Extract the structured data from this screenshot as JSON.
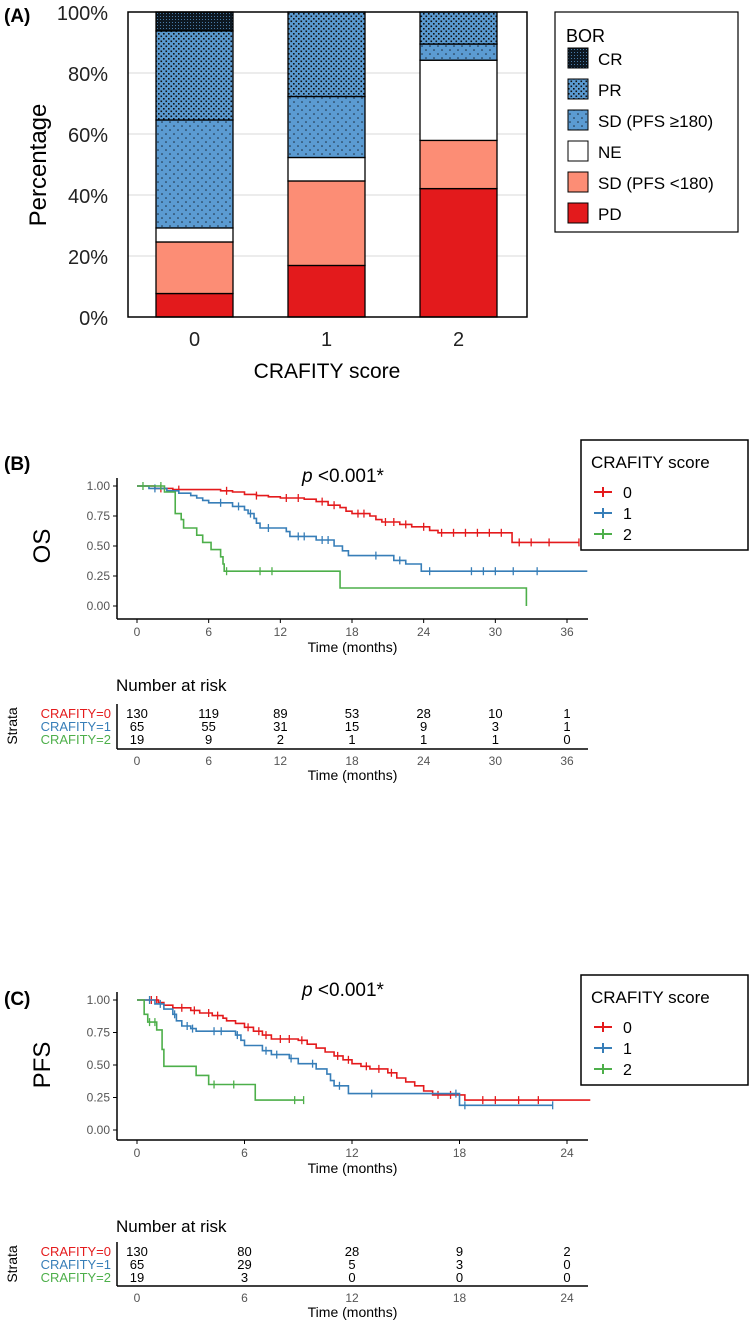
{
  "colors": {
    "pd": "#e31a1c",
    "sd_lt": "#fc8d75",
    "ne": "#ffffff",
    "sd_ge": "#5b9bd2",
    "pr": "#4a86c2",
    "cr": "#1a2a3a",
    "g0": "#e41a1c",
    "g1": "#377eb8",
    "g2": "#4daf4a"
  },
  "panel_labels": {
    "a": "(A)",
    "b": "(B)",
    "c": "(C)"
  },
  "chart_data": [
    {
      "type": "bar",
      "stacked": true,
      "title": "",
      "xlabel": "CRAFITY score",
      "ylabel": "Percentage",
      "categories": [
        "0",
        "1",
        "2"
      ],
      "ylim": [
        0,
        100
      ],
      "yticks": [
        "0%",
        "20%",
        "40%",
        "60%",
        "80%",
        "100%"
      ],
      "legend_title": "BOR",
      "legend_position": "right",
      "series": [
        {
          "key": "pd",
          "name": "PD",
          "values": [
            7.7,
            16.9,
            42.1
          ]
        },
        {
          "key": "sd_lt",
          "name": "SD (PFS <180)",
          "values": [
            16.9,
            27.7,
            15.8
          ]
        },
        {
          "key": "ne",
          "name": "NE",
          "values": [
            4.6,
            7.7,
            26.3
          ]
        },
        {
          "key": "sd_ge",
          "name": "SD (PFS ≥180)",
          "values": [
            35.4,
            20.0,
            5.3
          ]
        },
        {
          "key": "pr",
          "name": "PR",
          "values": [
            29.2,
            27.7,
            10.5
          ]
        },
        {
          "key": "cr",
          "name": "CR",
          "values": [
            6.2,
            0,
            0
          ]
        }
      ],
      "legend_order": [
        "CR",
        "PR",
        "SD (PFS ≥180)",
        "NE",
        "SD (PFS <180)",
        "PD"
      ]
    },
    {
      "type": "line",
      "subtype": "kaplan-meier",
      "ylabel": "OS",
      "xlabel": "Time (months)",
      "annotation": {
        "p": "p",
        "rest": " <0.001*"
      },
      "xlim": [
        0,
        38
      ],
      "xticks": [
        0,
        6,
        12,
        18,
        24,
        30,
        36
      ],
      "ylim": [
        0,
        1
      ],
      "yticks": [
        "0.00",
        "0.25",
        "0.50",
        "0.75",
        "1.00"
      ],
      "legend_title": "CRAFITY score",
      "legend_position": "top-right",
      "series": [
        {
          "name": "0",
          "color_key": "g0",
          "steps": [
            [
              0,
              1
            ],
            [
              1.5,
              0.98
            ],
            [
              3,
              0.97
            ],
            [
              7,
              0.96
            ],
            [
              8,
              0.95
            ],
            [
              9,
              0.93
            ],
            [
              10,
              0.92
            ],
            [
              11,
              0.91
            ],
            [
              12,
              0.9
            ],
            [
              14,
              0.89
            ],
            [
              15,
              0.87
            ],
            [
              16,
              0.84
            ],
            [
              17,
              0.82
            ],
            [
              17.5,
              0.79
            ],
            [
              18,
              0.77
            ],
            [
              19.5,
              0.75
            ],
            [
              20,
              0.72
            ],
            [
              20.5,
              0.7
            ],
            [
              22,
              0.68
            ],
            [
              23,
              0.66
            ],
            [
              24.5,
              0.63
            ],
            [
              25.2,
              0.61
            ],
            [
              31.4,
              0.53
            ]
          ],
          "end": 37,
          "censor": [
            2,
            3.5,
            7.5,
            10,
            12.5,
            13.5,
            15.5,
            16.5,
            18.5,
            19,
            20.8,
            21.5,
            22.5,
            24,
            25.5,
            26.5,
            27.5,
            28.5,
            29.5,
            30.5,
            32,
            33,
            34.5,
            37
          ]
        },
        {
          "name": "1",
          "color_key": "g1",
          "steps": [
            [
              0,
              1
            ],
            [
              1,
              0.98
            ],
            [
              2.5,
              0.96
            ],
            [
              3.5,
              0.94
            ],
            [
              4.5,
              0.92
            ],
            [
              5,
              0.9
            ],
            [
              5.5,
              0.88
            ],
            [
              6,
              0.86
            ],
            [
              8,
              0.83
            ],
            [
              9,
              0.8
            ],
            [
              9.3,
              0.77
            ],
            [
              9.8,
              0.73
            ],
            [
              10,
              0.69
            ],
            [
              10.3,
              0.65
            ],
            [
              12.5,
              0.62
            ],
            [
              12.8,
              0.58
            ],
            [
              15,
              0.55
            ],
            [
              16.5,
              0.5
            ],
            [
              17.2,
              0.46
            ],
            [
              17.7,
              0.42
            ],
            [
              21.5,
              0.38
            ],
            [
              22.5,
              0.35
            ],
            [
              23.8,
              0.29
            ]
          ],
          "end": 37.7,
          "censor": [
            1.5,
            7,
            8.5,
            9.5,
            11,
            13.5,
            14,
            15.5,
            16,
            20,
            22,
            24.5,
            28,
            29,
            30,
            31.5,
            33.5
          ]
        },
        {
          "name": "2",
          "color_key": "g2",
          "steps": [
            [
              0,
              1
            ],
            [
              2.3,
              0.95
            ],
            [
              3.2,
              0.77
            ],
            [
              3.7,
              0.72
            ],
            [
              3.9,
              0.65
            ],
            [
              5,
              0.59
            ],
            [
              5.5,
              0.53
            ],
            [
              6.2,
              0.47
            ],
            [
              7,
              0.41
            ],
            [
              7.2,
              0.35
            ],
            [
              7.3,
              0.29
            ],
            [
              17,
              0.15
            ],
            [
              32.6,
              0
            ]
          ],
          "end": 32.6,
          "censor": [
            0.5,
            2,
            7.5,
            10.3,
            11.3
          ]
        }
      ],
      "risk_table": {
        "title": "Number at risk",
        "strata_label": "Strata",
        "rows": [
          {
            "label": "CRAFITY=0",
            "color_key": "g0",
            "values": [
              "130",
              "119",
              "89",
              "53",
              "28",
              "10",
              "1"
            ]
          },
          {
            "label": "CRAFITY=1",
            "color_key": "g1",
            "values": [
              "65",
              "55",
              "31",
              "15",
              "9",
              "3",
              "1"
            ]
          },
          {
            "label": "CRAFITY=2",
            "color_key": "g2",
            "values": [
              "19",
              "9",
              "2",
              "1",
              "1",
              "1",
              "0"
            ]
          }
        ]
      }
    },
    {
      "type": "line",
      "subtype": "kaplan-meier",
      "ylabel": "PFS",
      "xlabel": "Time (months)",
      "annotation": {
        "p": "p",
        "rest": " <0.001*"
      },
      "xlim": [
        0,
        25.3
      ],
      "xticks": [
        0,
        6,
        12,
        18,
        24
      ],
      "ylim": [
        0,
        1
      ],
      "yticks": [
        "0.00",
        "0.25",
        "0.50",
        "0.75",
        "1.00"
      ],
      "legend_title": "CRAFITY score",
      "legend_position": "top-right",
      "series": [
        {
          "name": "0",
          "color_key": "g0",
          "steps": [
            [
              0,
              1
            ],
            [
              1.2,
              0.98
            ],
            [
              1.5,
              0.96
            ],
            [
              2,
              0.94
            ],
            [
              3,
              0.92
            ],
            [
              3.5,
              0.9
            ],
            [
              4.2,
              0.88
            ],
            [
              4.8,
              0.86
            ],
            [
              5,
              0.84
            ],
            [
              5.5,
              0.82
            ],
            [
              6,
              0.79
            ],
            [
              6.5,
              0.76
            ],
            [
              7,
              0.73
            ],
            [
              7.5,
              0.7
            ],
            [
              9,
              0.69
            ],
            [
              9.5,
              0.66
            ],
            [
              10,
              0.63
            ],
            [
              10.5,
              0.6
            ],
            [
              11,
              0.57
            ],
            [
              11.5,
              0.54
            ],
            [
              12,
              0.51
            ],
            [
              12.5,
              0.49
            ],
            [
              13,
              0.47
            ],
            [
              14,
              0.44
            ],
            [
              14.5,
              0.4
            ],
            [
              15,
              0.37
            ],
            [
              15.5,
              0.34
            ],
            [
              16,
              0.3
            ],
            [
              16.5,
              0.27
            ],
            [
              18.3,
              0.23
            ]
          ],
          "end": 25.3,
          "censor": [
            0.8,
            1.1,
            2.5,
            3.2,
            4,
            4.5,
            6.2,
            6.8,
            7.2,
            8,
            8.5,
            9.2,
            11.2,
            11.8,
            12.8,
            13.5,
            14.2,
            16.8,
            17.5,
            19.3,
            20,
            21.3,
            22.4
          ]
        },
        {
          "name": "1",
          "color_key": "g1",
          "steps": [
            [
              0,
              1
            ],
            [
              1,
              0.97
            ],
            [
              1.5,
              0.93
            ],
            [
              2,
              0.89
            ],
            [
              2.2,
              0.84
            ],
            [
              2.5,
              0.8
            ],
            [
              3,
              0.78
            ],
            [
              3.3,
              0.76
            ],
            [
              5.5,
              0.73
            ],
            [
              5.8,
              0.69
            ],
            [
              6,
              0.65
            ],
            [
              7,
              0.61
            ],
            [
              7.5,
              0.58
            ],
            [
              8.5,
              0.55
            ],
            [
              9,
              0.51
            ],
            [
              10,
              0.47
            ],
            [
              10.6,
              0.43
            ],
            [
              10.8,
              0.38
            ],
            [
              11,
              0.34
            ],
            [
              11.8,
              0.28
            ],
            [
              18,
              0.19
            ]
          ],
          "end": 23.2,
          "censor": [
            0.7,
            1.3,
            2.1,
            2.8,
            3.1,
            4.3,
            4.7,
            5.6,
            7.2,
            7.8,
            8.6,
            9.8,
            11.3,
            13.1,
            17.8,
            18.3,
            23.2
          ]
        },
        {
          "name": "2",
          "color_key": "g2",
          "steps": [
            [
              0,
              1
            ],
            [
              0.4,
              0.89
            ],
            [
              0.6,
              0.83
            ],
            [
              1.1,
              0.77
            ],
            [
              1.4,
              0.62
            ],
            [
              1.5,
              0.49
            ],
            [
              3.3,
              0.42
            ],
            [
              4,
              0.35
            ],
            [
              6.6,
              0.23
            ]
          ],
          "end": 9.3,
          "censor": [
            0.7,
            1,
            4.3,
            5.4,
            8.8,
            9.3
          ]
        }
      ],
      "risk_table": {
        "title": "Number at risk",
        "strata_label": "Strata",
        "rows": [
          {
            "label": "CRAFITY=0",
            "color_key": "g0",
            "values": [
              "130",
              "80",
              "28",
              "9",
              "2"
            ]
          },
          {
            "label": "CRAFITY=1",
            "color_key": "g1",
            "values": [
              "65",
              "29",
              "5",
              "3",
              "0"
            ]
          },
          {
            "label": "CRAFITY=2",
            "color_key": "g2",
            "values": [
              "19",
              "3",
              "0",
              "0",
              "0"
            ]
          }
        ]
      }
    }
  ]
}
